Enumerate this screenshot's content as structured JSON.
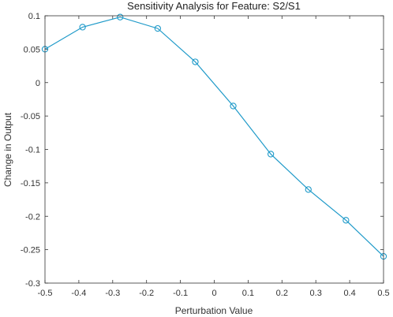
{
  "chart_data": {
    "type": "line",
    "title": "Sensitivity Analysis for Feature: S2/S1",
    "xlabel": "Perturbation Value",
    "ylabel": "Change in Output",
    "xlim": [
      -0.5,
      0.5
    ],
    "ylim": [
      -0.3,
      0.1
    ],
    "x_ticks": [
      -0.5,
      -0.4,
      -0.3,
      -0.2,
      -0.1,
      0,
      0.1,
      0.2,
      0.3,
      0.4,
      0.5
    ],
    "y_ticks": [
      0.1,
      0.05,
      0,
      -0.05,
      -0.1,
      -0.15,
      -0.2,
      -0.25,
      -0.3
    ],
    "x_tick_labels": [
      "-0.5",
      "-0.4",
      "-0.3",
      "-0.2",
      "-0.1",
      "0",
      "0.1",
      "0.2",
      "0.3",
      "0.4",
      "0.5"
    ],
    "y_tick_labels": [
      "0.1",
      "0.05",
      "0",
      "-0.05",
      "-0.1",
      "-0.15",
      "-0.2",
      "-0.25",
      "-0.3"
    ],
    "grid": false,
    "marker": "circle",
    "color": "#1f9ac9",
    "series": [
      {
        "x": [
          -0.5,
          -0.389,
          -0.278,
          -0.167,
          -0.056,
          0.056,
          0.167,
          0.278,
          0.389,
          0.5
        ],
        "y": [
          0.05,
          0.083,
          0.098,
          0.081,
          0.031,
          -0.035,
          -0.107,
          -0.16,
          -0.206,
          -0.26
        ]
      }
    ]
  }
}
